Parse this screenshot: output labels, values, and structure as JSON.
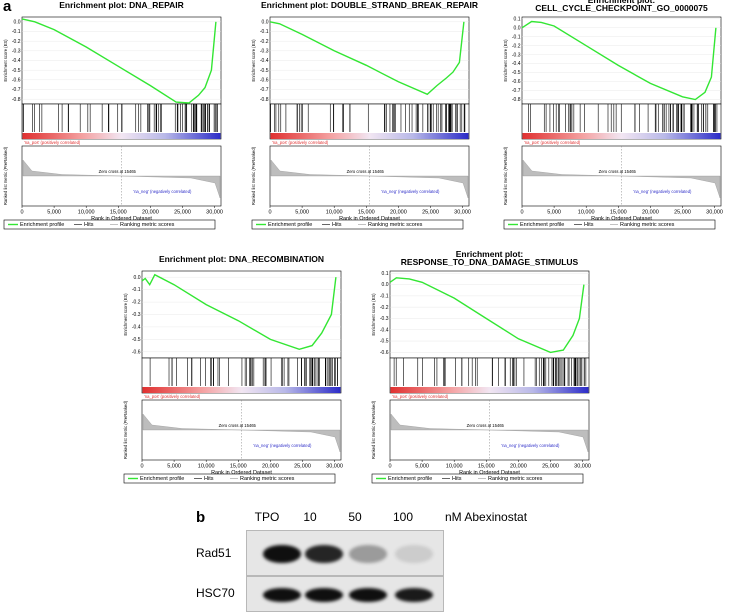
{
  "panel_a_label": "a",
  "panel_b_label": "b",
  "legend": {
    "enrichment": "Enrichment profile",
    "hits": "Hits",
    "ranking": "Ranking metric scores"
  },
  "labels": {
    "es_axis": "Enrichment score (ES)",
    "metric_axis": "Ranked list metric (PreRanked)",
    "x_axis": "Rank in Ordered Dataset",
    "pos": "'na_pos' (positively correlated)",
    "neg": "'na_neg' (negatively correlated)",
    "zero_cross": "Zero cross at 15465"
  },
  "colors": {
    "es_line": "#33e633",
    "metric_fill": "#bdbdbd",
    "pos": "#e03030",
    "neg": "#2c2cc8"
  },
  "chart_data": [
    {
      "type": "line",
      "title": "Enrichment plot: DNA_REPAIR",
      "title_lines": [
        "Enrichment plot: DNA_REPAIR"
      ],
      "yticks": [
        "0.0",
        "-0.1",
        "-0.2",
        "-0.3",
        "-0.4",
        "-0.5",
        "-0.6",
        "-0.7",
        "-0.8"
      ],
      "ylim": [
        -0.85,
        0.05
      ],
      "x": [
        0,
        2000,
        5000,
        10000,
        15000,
        20000,
        24000,
        26000,
        27500,
        28500,
        29500,
        30200
      ],
      "y": [
        0.03,
        0.0,
        -0.08,
        -0.26,
        -0.46,
        -0.66,
        -0.83,
        -0.84,
        -0.76,
        -0.68,
        -0.5,
        0.0
      ],
      "xlim": [
        0,
        31000
      ],
      "xticks": [
        "0",
        "5,000",
        "10,000",
        "15,000",
        "20,000",
        "25,000",
        "30,000"
      ]
    },
    {
      "type": "line",
      "title": "Enrichment plot: DOUBLE_STRAND_BREAK_REPAIR",
      "title_lines": [
        "Enrichment plot: DOUBLE_STRAND_BREAK_REPAIR"
      ],
      "yticks": [
        "0.0",
        "-0.1",
        "-0.2",
        "-0.3",
        "-0.4",
        "-0.5",
        "-0.6",
        "-0.7",
        "-0.8"
      ],
      "ylim": [
        -0.85,
        0.05
      ],
      "x": [
        0,
        1500,
        5000,
        10000,
        15000,
        20000,
        24500,
        26000,
        27500,
        28500,
        29500,
        30200
      ],
      "y": [
        0.0,
        -0.02,
        -0.13,
        -0.3,
        -0.45,
        -0.62,
        -0.75,
        -0.66,
        -0.58,
        -0.52,
        -0.42,
        0.0
      ],
      "xlim": [
        0,
        31000
      ],
      "xticks": [
        "0",
        "5,000",
        "10,000",
        "15,000",
        "20,000",
        "25,000",
        "30,000"
      ]
    },
    {
      "type": "line",
      "title": "Enrichment plot: CELL_CYCLE_CHECKPOINT_GO_0000075",
      "title_lines": [
        "Enrichment plot:",
        "CELL_CYCLE_CHECKPOINT_GO_0000075"
      ],
      "yticks": [
        "0.1",
        "0.0",
        "-0.1",
        "-0.2",
        "-0.3",
        "-0.4",
        "-0.5",
        "-0.6",
        "-0.7",
        "-0.8"
      ],
      "ylim": [
        -0.85,
        0.12
      ],
      "x": [
        0,
        1500,
        3000,
        5000,
        10000,
        15000,
        20000,
        25000,
        27000,
        28500,
        29500,
        30200
      ],
      "y": [
        0.0,
        0.07,
        0.06,
        0.02,
        -0.2,
        -0.42,
        -0.62,
        -0.77,
        -0.8,
        -0.72,
        -0.55,
        0.0
      ],
      "xlim": [
        0,
        31000
      ],
      "xticks": [
        "0",
        "5,000",
        "10,000",
        "15,000",
        "20,000",
        "25,000",
        "30,000"
      ]
    },
    {
      "type": "line",
      "title": "Enrichment plot: DNA_RECOMBINATION",
      "title_lines": [
        "Enrichment plot: DNA_RECOMBINATION"
      ],
      "yticks": [
        "0.0",
        "-0.1",
        "-0.2",
        "-0.3",
        "-0.4",
        "-0.5",
        "-0.6"
      ],
      "ylim": [
        -0.65,
        0.05
      ],
      "x": [
        0,
        500,
        1200,
        2000,
        5000,
        10000,
        15000,
        20000,
        24500,
        26500,
        28000,
        29500,
        30200
      ],
      "y": [
        -0.03,
        -0.01,
        -0.06,
        0.02,
        -0.06,
        -0.22,
        -0.35,
        -0.5,
        -0.58,
        -0.55,
        -0.45,
        -0.3,
        0.0
      ],
      "xlim": [
        0,
        31000
      ],
      "xticks": [
        "0",
        "5,000",
        "10,000",
        "15,000",
        "20,000",
        "25,000",
        "30,000"
      ]
    },
    {
      "type": "line",
      "title": "Enrichment plot: RESPONSE_TO_DNA_DAMAGE_STIMULUS",
      "title_lines": [
        "Enrichment plot:",
        "RESPONSE_TO_DNA_DAMAGE_STIMULUS"
      ],
      "yticks": [
        "0.1",
        "0.0",
        "-0.1",
        "-0.2",
        "-0.3",
        "-0.4",
        "-0.5",
        "-0.6"
      ],
      "ylim": [
        -0.65,
        0.12
      ],
      "x": [
        0,
        1000,
        3000,
        5000,
        10000,
        15000,
        20000,
        25000,
        27000,
        28500,
        29500,
        30200
      ],
      "y": [
        0.02,
        0.06,
        0.05,
        0.02,
        -0.12,
        -0.3,
        -0.48,
        -0.6,
        -0.58,
        -0.45,
        -0.3,
        0.0
      ],
      "xlim": [
        0,
        31000
      ],
      "xticks": [
        "0",
        "5,000",
        "10,000",
        "15,000",
        "20,000",
        "25,000",
        "30,000"
      ]
    }
  ],
  "western": {
    "lanes": [
      "TPO",
      "10",
      "50",
      "100"
    ],
    "treatment": "nM Abexinostat",
    "rows": [
      {
        "label": "Rad51",
        "intensity": [
          1.0,
          0.9,
          0.35,
          0.12
        ]
      },
      {
        "label": "HSC70",
        "intensity": [
          1.0,
          1.0,
          1.0,
          0.95
        ]
      }
    ]
  }
}
